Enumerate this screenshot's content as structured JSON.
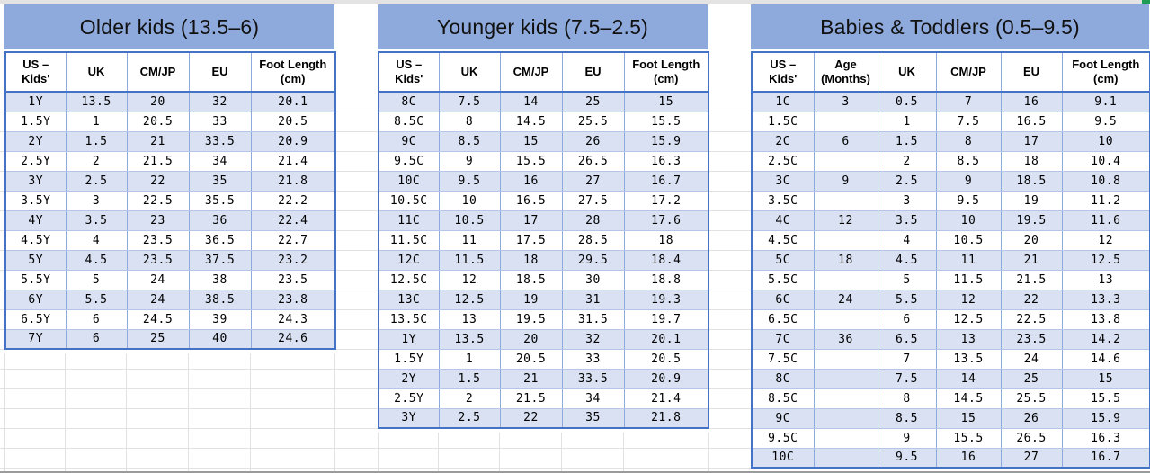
{
  "palette": {
    "title_bg": "#8EA9DB",
    "stripe_bg": "#D9E1F2",
    "border_dark": "#4472C4",
    "border_light": "#8EA9DB",
    "gridline_gray": "#E2E2E2",
    "corner_mark_green": "#1F9D55"
  },
  "tables": [
    {
      "title": "Older kids (13.5–6)",
      "columns": [
        "US – Kids'",
        "UK",
        "CM/JP",
        "EU",
        "Foot Length (cm)"
      ],
      "rows": [
        [
          "1Y",
          "13.5",
          "20",
          "32",
          "20.1"
        ],
        [
          "1.5Y",
          "1",
          "20.5",
          "33",
          "20.5"
        ],
        [
          "2Y",
          "1.5",
          "21",
          "33.5",
          "20.9"
        ],
        [
          "2.5Y",
          "2",
          "21.5",
          "34",
          "21.4"
        ],
        [
          "3Y",
          "2.5",
          "22",
          "35",
          "21.8"
        ],
        [
          "3.5Y",
          "3",
          "22.5",
          "35.5",
          "22.2"
        ],
        [
          "4Y",
          "3.5",
          "23",
          "36",
          "22.4"
        ],
        [
          "4.5Y",
          "4",
          "23.5",
          "36.5",
          "22.7"
        ],
        [
          "5Y",
          "4.5",
          "23.5",
          "37.5",
          "23.2"
        ],
        [
          "5.5Y",
          "5",
          "24",
          "38",
          "23.5"
        ],
        [
          "6Y",
          "5.5",
          "24",
          "38.5",
          "23.8"
        ],
        [
          "6.5Y",
          "6",
          "24.5",
          "39",
          "24.3"
        ],
        [
          "7Y",
          "6",
          "25",
          "40",
          "24.6"
        ]
      ]
    },
    {
      "title": "Younger kids (7.5–2.5)",
      "columns": [
        "US – Kids'",
        "UK",
        "CM/JP",
        "EU",
        "Foot Length (cm)"
      ],
      "rows": [
        [
          "8C",
          "7.5",
          "14",
          "25",
          "15"
        ],
        [
          "8.5C",
          "8",
          "14.5",
          "25.5",
          "15.5"
        ],
        [
          "9C",
          "8.5",
          "15",
          "26",
          "15.9"
        ],
        [
          "9.5C",
          "9",
          "15.5",
          "26.5",
          "16.3"
        ],
        [
          "10C",
          "9.5",
          "16",
          "27",
          "16.7"
        ],
        [
          "10.5C",
          "10",
          "16.5",
          "27.5",
          "17.2"
        ],
        [
          "11C",
          "10.5",
          "17",
          "28",
          "17.6"
        ],
        [
          "11.5C",
          "11",
          "17.5",
          "28.5",
          "18"
        ],
        [
          "12C",
          "11.5",
          "18",
          "29.5",
          "18.4"
        ],
        [
          "12.5C",
          "12",
          "18.5",
          "30",
          "18.8"
        ],
        [
          "13C",
          "12.5",
          "19",
          "31",
          "19.3"
        ],
        [
          "13.5C",
          "13",
          "19.5",
          "31.5",
          "19.7"
        ],
        [
          "1Y",
          "13.5",
          "20",
          "32",
          "20.1"
        ],
        [
          "1.5Y",
          "1",
          "20.5",
          "33",
          "20.5"
        ],
        [
          "2Y",
          "1.5",
          "21",
          "33.5",
          "20.9"
        ],
        [
          "2.5Y",
          "2",
          "21.5",
          "34",
          "21.4"
        ],
        [
          "3Y",
          "2.5",
          "22",
          "35",
          "21.8"
        ]
      ]
    },
    {
      "title": "Babies & Toddlers (0.5–9.5)",
      "columns": [
        "US – Kids'",
        "Age (Months)",
        "UK",
        "CM/JP",
        "EU",
        "Foot Length (cm)"
      ],
      "rows": [
        [
          "1C",
          "3",
          "0.5",
          "7",
          "16",
          "9.1"
        ],
        [
          "1.5C",
          "",
          "1",
          "7.5",
          "16.5",
          "9.5"
        ],
        [
          "2C",
          "6",
          "1.5",
          "8",
          "17",
          "10"
        ],
        [
          "2.5C",
          "",
          "2",
          "8.5",
          "18",
          "10.4"
        ],
        [
          "3C",
          "9",
          "2.5",
          "9",
          "18.5",
          "10.8"
        ],
        [
          "3.5C",
          "",
          "3",
          "9.5",
          "19",
          "11.2"
        ],
        [
          "4C",
          "12",
          "3.5",
          "10",
          "19.5",
          "11.6"
        ],
        [
          "4.5C",
          "",
          "4",
          "10.5",
          "20",
          "12"
        ],
        [
          "5C",
          "18",
          "4.5",
          "11",
          "21",
          "12.5"
        ],
        [
          "5.5C",
          "",
          "5",
          "11.5",
          "21.5",
          "13"
        ],
        [
          "6C",
          "24",
          "5.5",
          "12",
          "22",
          "13.3"
        ],
        [
          "6.5C",
          "",
          "6",
          "12.5",
          "22.5",
          "13.8"
        ],
        [
          "7C",
          "36",
          "6.5",
          "13",
          "23.5",
          "14.2"
        ],
        [
          "7.5C",
          "",
          "7",
          "13.5",
          "24",
          "14.6"
        ],
        [
          "8C",
          "",
          "7.5",
          "14",
          "25",
          "15"
        ],
        [
          "8.5C",
          "",
          "8",
          "14.5",
          "25.5",
          "15.5"
        ],
        [
          "9C",
          "",
          "8.5",
          "15",
          "26",
          "15.9"
        ],
        [
          "9.5C",
          "",
          "9",
          "15.5",
          "26.5",
          "16.3"
        ],
        [
          "10C",
          "",
          "9.5",
          "16",
          "27",
          "16.7"
        ]
      ]
    }
  ]
}
